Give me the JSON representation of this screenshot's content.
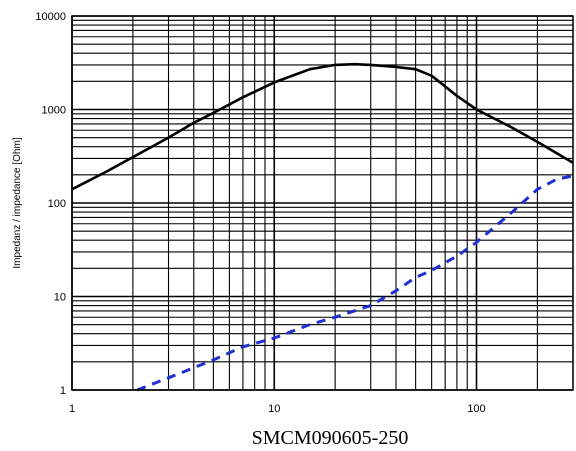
{
  "chart_data": {
    "type": "line",
    "xscale": "log",
    "yscale": "log",
    "xlim": [
      1,
      300
    ],
    "ylim": [
      1,
      10000
    ],
    "grid": true,
    "ylabel": "Impedanz / impedance [Ohm]",
    "xlabel": "",
    "caption": "SMCM090605-250",
    "x_ticks": [
      {
        "value": 1,
        "label": "1"
      },
      {
        "value": 10,
        "label": "10"
      },
      {
        "value": 100,
        "label": "100"
      }
    ],
    "y_ticks": [
      {
        "value": 1,
        "label": "1"
      },
      {
        "value": 10,
        "label": "10"
      },
      {
        "value": 100,
        "label": "100"
      },
      {
        "value": 1000,
        "label": "1000"
      },
      {
        "value": 10000,
        "label": "10000"
      }
    ],
    "series": [
      {
        "color": "#000000",
        "style": "solid",
        "points": [
          [
            1,
            140
          ],
          [
            1.5,
            220
          ],
          [
            2,
            310
          ],
          [
            3,
            500
          ],
          [
            4,
            720
          ],
          [
            5,
            920
          ],
          [
            7,
            1350
          ],
          [
            10,
            1950
          ],
          [
            15,
            2700
          ],
          [
            20,
            3000
          ],
          [
            25,
            3050
          ],
          [
            30,
            3000
          ],
          [
            40,
            2850
          ],
          [
            50,
            2700
          ],
          [
            60,
            2300
          ],
          [
            80,
            1400
          ],
          [
            100,
            1000
          ],
          [
            150,
            640
          ],
          [
            200,
            450
          ],
          [
            300,
            270
          ]
        ]
      },
      {
        "color": "#1f2fd0",
        "style": "dashed",
        "points": [
          [
            2.1,
            1
          ],
          [
            3,
            1.35
          ],
          [
            5,
            2.1
          ],
          [
            7,
            2.9
          ],
          [
            10,
            3.6
          ],
          [
            15,
            5
          ],
          [
            20,
            6
          ],
          [
            30,
            8
          ],
          [
            40,
            11.5
          ],
          [
            50,
            16
          ],
          [
            60,
            19
          ],
          [
            80,
            27
          ],
          [
            100,
            38
          ],
          [
            150,
            80
          ],
          [
            200,
            140
          ],
          [
            250,
            180
          ],
          [
            300,
            195
          ]
        ]
      }
    ]
  }
}
